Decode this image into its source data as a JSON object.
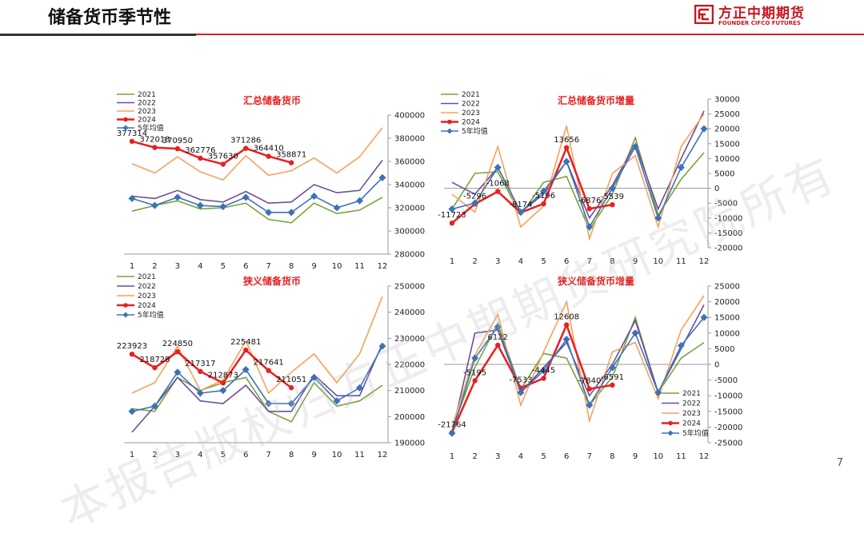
{
  "header": {
    "title": "储备货币季节性"
  },
  "logo": {
    "cn": "方正中期期货",
    "en": "FOUNDER CIFCO FUTURES"
  },
  "page_number": "7",
  "watermark": "本报告版权归方正中期期货研究院所有",
  "colors": {
    "s2021": "#77a33c",
    "s2022": "#6b4f9a",
    "s2023": "#f5a25c",
    "s2024": "#e62020",
    "savg": "#3d72b8",
    "brand": "#c8161d"
  },
  "chart_data": [
    {
      "type": "line",
      "title": "汇总储备货币",
      "categories": [
        "1",
        "2",
        "3",
        "4",
        "5",
        "6",
        "7",
        "8",
        "9",
        "10",
        "11",
        "12"
      ],
      "ylim": [
        280000,
        400000
      ],
      "yticks": [
        "280000",
        "300000",
        "320000",
        "340000",
        "360000",
        "380000",
        "400000"
      ],
      "legend": [
        "2021",
        "2022",
        "2023",
        "2024",
        "5年均值"
      ],
      "series": [
        {
          "name": "2021",
          "values": [
            317000,
            322000,
            326000,
            319000,
            320000,
            324000,
            310000,
            307000,
            324000,
            315000,
            318000,
            329000
          ]
        },
        {
          "name": "2022",
          "values": [
            330000,
            328000,
            335000,
            327000,
            325000,
            334000,
            324000,
            325000,
            340000,
            333000,
            335000,
            361000
          ]
        },
        {
          "name": "2023",
          "values": [
            358000,
            350000,
            364000,
            351000,
            344000,
            365000,
            348000,
            352000,
            363000,
            350000,
            364000,
            389000
          ]
        },
        {
          "name": "2024",
          "values": [
            377314,
            372018,
            370950,
            362776,
            357630,
            371286,
            364410,
            358871
          ]
        },
        {
          "name": "5年均值",
          "values": [
            328000,
            322000,
            329000,
            322000,
            321000,
            329000,
            316000,
            316000,
            330000,
            320000,
            326000,
            346000
          ]
        }
      ],
      "labels": [
        "377314",
        "372018",
        "370950",
        "362776",
        "357630",
        "371286",
        "364410",
        "358871"
      ]
    },
    {
      "type": "line",
      "title": "汇总储备货币增量",
      "categories": [
        "1",
        "2",
        "3",
        "4",
        "5",
        "6",
        "7",
        "8",
        "9",
        "10",
        "11",
        "12"
      ],
      "ylim": [
        -20000,
        30000
      ],
      "yticks": [
        "-20000",
        "-15000",
        "-10000",
        "-5000",
        "0",
        "5000",
        "10000",
        "15000",
        "20000",
        "25000",
        "30000"
      ],
      "legend": [
        "2021",
        "2022",
        "2023",
        "2024",
        "5年均值"
      ],
      "series": [
        {
          "name": "2021",
          "values": [
            -7000,
            5000,
            5500,
            -9000,
            2000,
            4000,
            -14000,
            -2000,
            17000,
            -9000,
            3000,
            12000
          ]
        },
        {
          "name": "2022",
          "values": [
            2000,
            -2000,
            7000,
            -8000,
            -2000,
            9000,
            -10000,
            1000,
            15000,
            -7000,
            10000,
            26000
          ]
        },
        {
          "name": "2023",
          "values": [
            -2000,
            -8000,
            14000,
            -13000,
            -6000,
            21000,
            -17000,
            5000,
            11000,
            -13000,
            14000,
            25000
          ]
        },
        {
          "name": "2024",
          "values": [
            -11723,
            -5296,
            -1068,
            -8174,
            -5196,
            13656,
            -6876,
            -5539
          ]
        },
        {
          "name": "5年均值",
          "values": [
            -7000,
            -5000,
            7000,
            -8000,
            -1000,
            9000,
            -13000,
            0,
            14000,
            -10000,
            7000,
            20000
          ]
        }
      ],
      "labels": [
        "-11723",
        "-5296",
        "-1068",
        "-8174",
        "-5196",
        "13656",
        "-6876",
        "-5539"
      ]
    },
    {
      "type": "line",
      "title": "狭义储备货币",
      "categories": [
        "1",
        "2",
        "3",
        "4",
        "5",
        "6",
        "7",
        "8",
        "9",
        "10",
        "11",
        "12"
      ],
      "ylim": [
        190000,
        250000
      ],
      "yticks": [
        "190000",
        "200000",
        "210000",
        "220000",
        "230000",
        "240000",
        "250000"
      ],
      "legend": [
        "2021",
        "2022",
        "2023",
        "2024",
        "5年均值"
      ],
      "series": [
        {
          "name": "2021",
          "values": [
            203000,
            202000,
            215000,
            210000,
            213000,
            215000,
            202000,
            198000,
            213000,
            204000,
            206000,
            212000
          ]
        },
        {
          "name": "2022",
          "values": [
            194000,
            204000,
            215000,
            206000,
            205000,
            212000,
            202000,
            202000,
            216000,
            208000,
            208000,
            228000
          ]
        },
        {
          "name": "2023",
          "values": [
            209000,
            213000,
            227000,
            210000,
            214000,
            229000,
            209000,
            217000,
            224000,
            213000,
            224000,
            246000
          ]
        },
        {
          "name": "2024",
          "values": [
            223923,
            218728,
            224850,
            217317,
            212873,
            225481,
            217641,
            211051
          ]
        },
        {
          "name": "5年均值",
          "values": [
            202000,
            204000,
            217000,
            209000,
            210000,
            218000,
            205000,
            205000,
            215000,
            206000,
            211000,
            227000
          ]
        }
      ],
      "labels": [
        "223923",
        "218728",
        "224850",
        "217317",
        "212873",
        "225481",
        "217641",
        "211051"
      ]
    },
    {
      "type": "line",
      "title": "狭义储备货币增量",
      "categories": [
        "1",
        "2",
        "3",
        "4",
        "5",
        "6",
        "7",
        "8",
        "9",
        "10",
        "11",
        "12"
      ],
      "ylim": [
        -25000,
        25000
      ],
      "yticks": [
        "-25000",
        "-20000",
        "-15000",
        "-10000",
        "-5000",
        "0",
        "5000",
        "10000",
        "15000",
        "20000",
        "25000"
      ],
      "legend": [
        "2021",
        "2022",
        "2023",
        "2024",
        "5年均值"
      ],
      "series": [
        {
          "name": "2021",
          "values": [
            -21000,
            -1000,
            13000,
            -8000,
            3500,
            2000,
            -13000,
            -4000,
            15000,
            -9000,
            2000,
            7000
          ]
        },
        {
          "name": "2022",
          "values": [
            -22000,
            10000,
            11000,
            -9000,
            -1000,
            7000,
            -10000,
            0,
            14000,
            -9000,
            5000,
            19000
          ]
        },
        {
          "name": "2023",
          "values": [
            -20000,
            3000,
            16000,
            -13000,
            4000,
            20000,
            -18000,
            4000,
            7000,
            -11000,
            11000,
            22000
          ]
        },
        {
          "name": "2024",
          "values": [
            -21764,
            -5195,
            6122,
            -7533,
            -4445,
            12608,
            -7840,
            -6591
          ]
        },
        {
          "name": "5年均值",
          "values": [
            -22000,
            2000,
            12000,
            -9000,
            -2000,
            8000,
            -13000,
            -1000,
            10000,
            -9000,
            6000,
            15000
          ]
        }
      ],
      "labels": [
        "-21764",
        "-5195",
        "6122",
        "-7533",
        "-4445",
        "12608",
        "-7840",
        "-6591"
      ]
    }
  ]
}
